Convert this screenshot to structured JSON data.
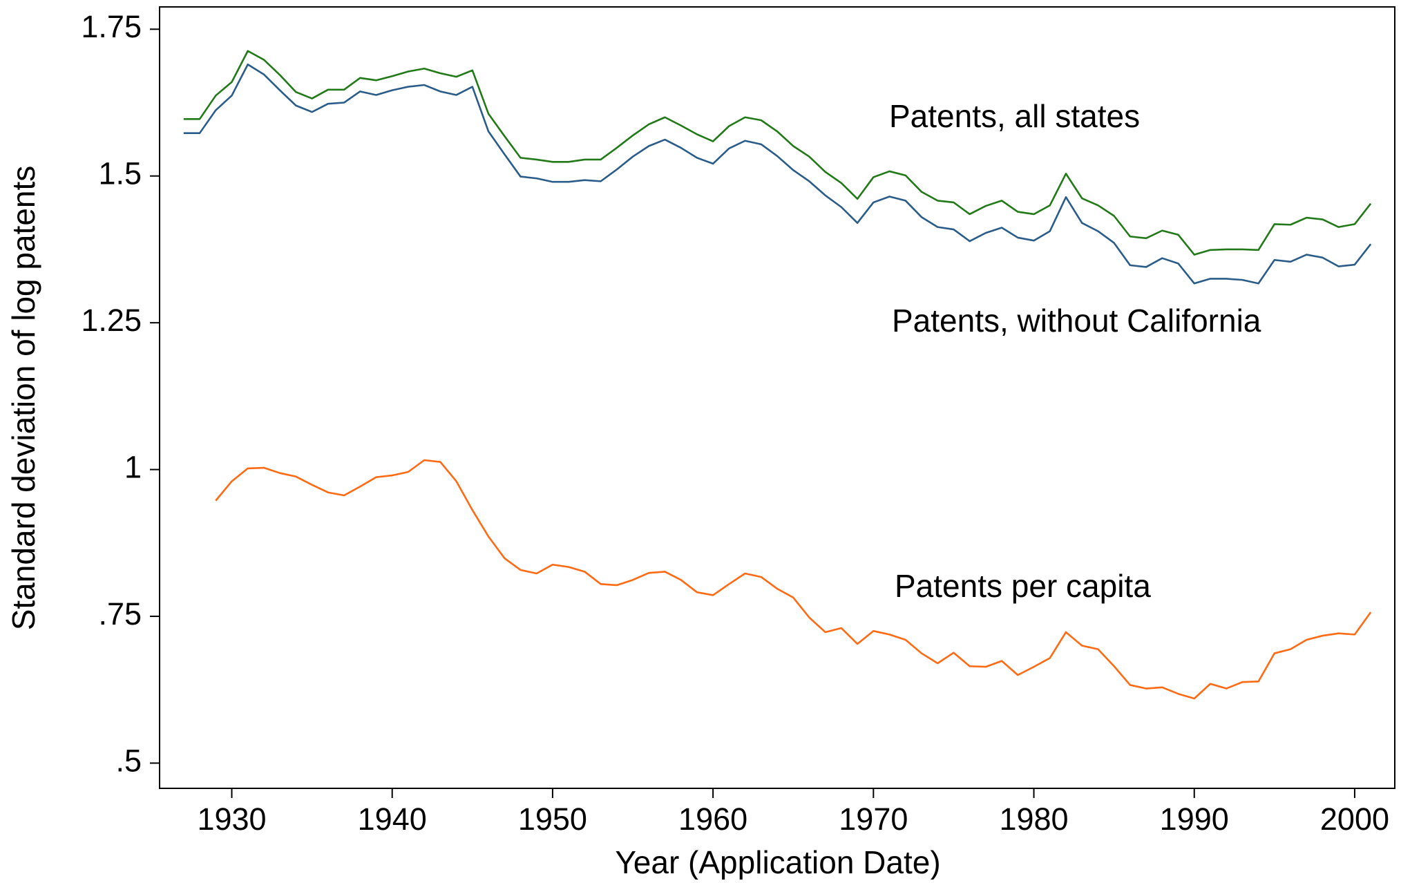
{
  "chart_data": {
    "type": "line",
    "y_label": "Standard deviation of log patents",
    "x_label": "Year (Application Date)",
    "xlim": [
      1925.5,
      2002.5
    ],
    "xticks": [
      1930,
      1940,
      1950,
      1960,
      1970,
      1980,
      1990,
      2000
    ],
    "ylim": [
      0.457,
      1.788
    ],
    "yticks": [
      {
        "value": 0.5,
        "label": ".5"
      },
      {
        "value": 0.75,
        "label": ".75"
      },
      1,
      1.25,
      1.5,
      1.75
    ],
    "grid": false,
    "x": [
      1927,
      1928,
      1929,
      1930,
      1931,
      1932,
      1933,
      1934,
      1935,
      1936,
      1937,
      1938,
      1939,
      1940,
      1941,
      1942,
      1943,
      1944,
      1945,
      1946,
      1947,
      1948,
      1949,
      1950,
      1951,
      1952,
      1953,
      1954,
      1955,
      1956,
      1957,
      1958,
      1959,
      1960,
      1961,
      1962,
      1963,
      1964,
      1965,
      1966,
      1967,
      1968,
      1969,
      1970,
      1971,
      1972,
      1973,
      1974,
      1975,
      1976,
      1977,
      1978,
      1979,
      1980,
      1981,
      1982,
      1983,
      1984,
      1985,
      1986,
      1987,
      1988,
      1989,
      1990,
      1991,
      1992,
      1993,
      1994,
      1995,
      1996,
      1997,
      1998,
      1999,
      2000,
      2001
    ],
    "series": [
      {
        "name": "Patents, all states",
        "color": "#217a17",
        "values": [
          1.597,
          1.597,
          1.637,
          1.66,
          1.713,
          1.698,
          1.672,
          1.643,
          1.632,
          1.647,
          1.647,
          1.667,
          1.663,
          1.67,
          1.678,
          1.683,
          1.675,
          1.669,
          1.68,
          1.606,
          1.568,
          1.531,
          1.528,
          1.524,
          1.524,
          1.528,
          1.528,
          1.548,
          1.569,
          1.588,
          1.6,
          1.586,
          1.571,
          1.559,
          1.585,
          1.6,
          1.595,
          1.576,
          1.551,
          1.533,
          1.507,
          1.488,
          1.461,
          1.498,
          1.508,
          1.501,
          1.473,
          1.458,
          1.455,
          1.435,
          1.449,
          1.458,
          1.439,
          1.435,
          1.45,
          1.504,
          1.462,
          1.45,
          1.432,
          1.397,
          1.394,
          1.407,
          1.4,
          1.366,
          1.374,
          1.375,
          1.375,
          1.374,
          1.418,
          1.417,
          1.429,
          1.426,
          1.413,
          1.418,
          1.453
        ]
      },
      {
        "name": "Patents, without California",
        "color": "#2a5c8a",
        "values": [
          1.573,
          1.573,
          1.612,
          1.637,
          1.69,
          1.673,
          1.646,
          1.62,
          1.609,
          1.623,
          1.625,
          1.644,
          1.638,
          1.646,
          1.652,
          1.655,
          1.644,
          1.638,
          1.652,
          1.576,
          1.537,
          1.499,
          1.496,
          1.49,
          1.49,
          1.493,
          1.491,
          1.511,
          1.533,
          1.551,
          1.562,
          1.548,
          1.531,
          1.521,
          1.547,
          1.56,
          1.554,
          1.534,
          1.51,
          1.491,
          1.467,
          1.447,
          1.42,
          1.455,
          1.465,
          1.458,
          1.43,
          1.413,
          1.409,
          1.389,
          1.403,
          1.412,
          1.395,
          1.39,
          1.406,
          1.464,
          1.42,
          1.406,
          1.386,
          1.348,
          1.345,
          1.36,
          1.351,
          1.317,
          1.325,
          1.325,
          1.323,
          1.317,
          1.357,
          1.354,
          1.366,
          1.361,
          1.346,
          1.349,
          1.384
        ]
      },
      {
        "name": "Patents per capita",
        "color": "#ff6a13",
        "values": [
          null,
          null,
          0.947,
          0.98,
          1.002,
          1.003,
          0.994,
          0.988,
          0.974,
          0.961,
          0.956,
          0.971,
          0.987,
          0.99,
          0.996,
          1.016,
          1.013,
          0.98,
          0.931,
          0.886,
          0.849,
          0.829,
          0.823,
          0.838,
          0.834,
          0.826,
          0.805,
          0.803,
          0.812,
          0.824,
          0.826,
          0.812,
          0.791,
          0.786,
          0.805,
          0.823,
          0.817,
          0.797,
          0.782,
          0.748,
          0.723,
          0.73,
          0.703,
          0.725,
          0.719,
          0.71,
          0.687,
          0.67,
          0.688,
          0.665,
          0.664,
          0.674,
          0.65,
          0.664,
          0.679,
          0.723,
          0.7,
          0.694,
          0.665,
          0.633,
          0.627,
          0.629,
          0.618,
          0.61,
          0.635,
          0.627,
          0.638,
          0.639,
          0.687,
          0.694,
          0.71,
          0.717,
          0.721,
          0.719,
          0.757
        ]
      }
    ]
  }
}
